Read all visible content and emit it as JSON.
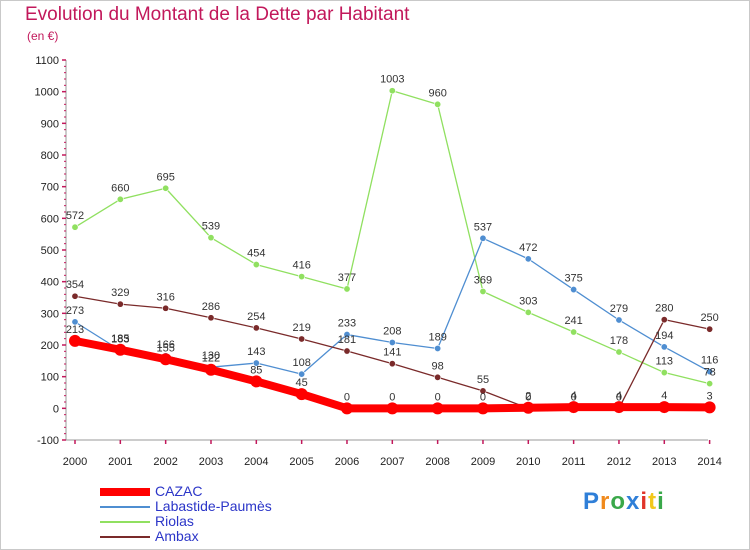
{
  "title": "Evolution du Montant de la Dette par Habitant",
  "unit_label": "(en €)",
  "logo_text": "Proxiti",
  "chart_data": {
    "type": "line",
    "title": "Evolution du Montant de la Dette par Habitant",
    "subtitle": "(en €)",
    "x": [
      2000,
      2001,
      2002,
      2003,
      2004,
      2005,
      2006,
      2007,
      2008,
      2009,
      2010,
      2011,
      2012,
      2013,
      2014
    ],
    "x_tick_labels": [
      "2000",
      "2001",
      "2002",
      "2003",
      "2004",
      "2005",
      "2006",
      "2007",
      "2008",
      "2009",
      "2010",
      "2011",
      "2012",
      "2013",
      "2014"
    ],
    "ylim": [
      -100,
      1100
    ],
    "y_ticks": [
      -100,
      0,
      100,
      200,
      300,
      400,
      500,
      600,
      700,
      800,
      900,
      1000,
      1100
    ],
    "grid": "none",
    "legend_position": "bottom-left",
    "series": [
      {
        "name": "CAZAC",
        "color": "#ff0000",
        "values": [
          213,
          185,
          155,
          122,
          85,
          45,
          0,
          0,
          0,
          0,
          2,
          4,
          4,
          4,
          3
        ]
      },
      {
        "name": "Labastide-Paumès",
        "color": "#4f8ed1",
        "values": [
          273,
          183,
          166,
          130,
          143,
          108,
          233,
          208,
          189,
          537,
          472,
          375,
          279,
          194,
          116
        ]
      },
      {
        "name": "Riolas",
        "color": "#90e060",
        "values": [
          572,
          660,
          695,
          539,
          454,
          416,
          377,
          1003,
          960,
          369,
          303,
          241,
          178,
          113,
          78
        ]
      },
      {
        "name": "Ambax",
        "color": "#7a2a2a",
        "values": [
          354,
          329,
          316,
          286,
          254,
          219,
          181,
          141,
          98,
          55,
          0,
          0,
          0,
          280,
          250
        ]
      }
    ]
  }
}
